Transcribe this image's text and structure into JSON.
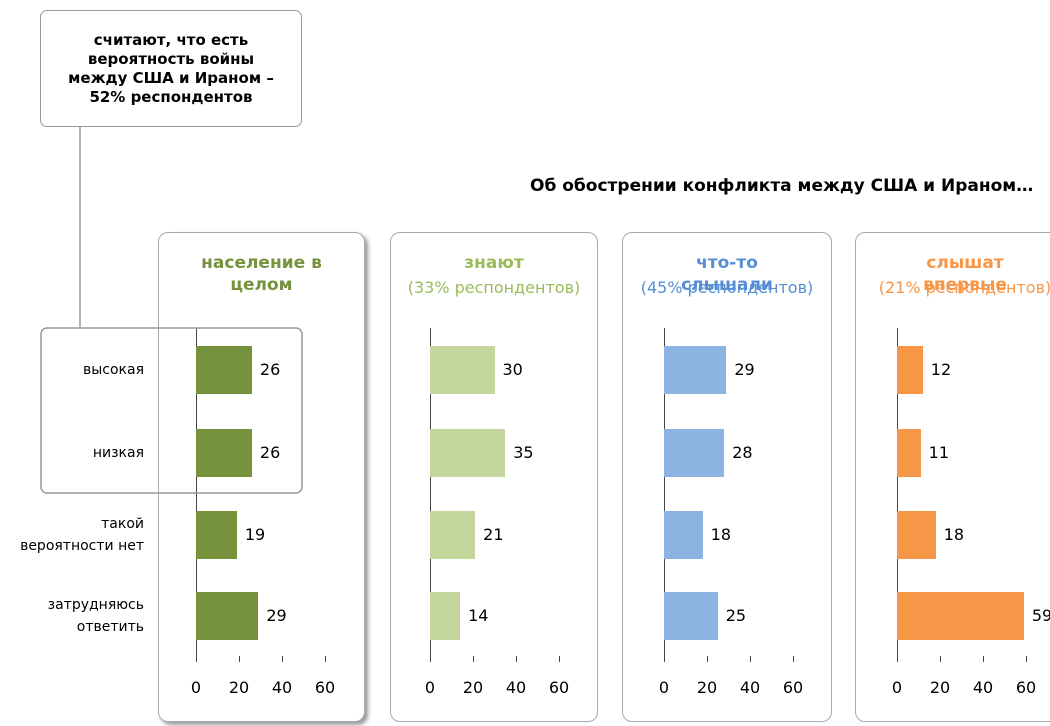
{
  "callout": "считают, что есть вероятность войны между США и Ираном – 52% респондентов",
  "title": "Об обострении конфликта между США и Ираном…",
  "chart_data": [
    {
      "type": "bar",
      "title": "население в целом",
      "categories": [
        "высокая",
        "низкая",
        "такой вероятности нет",
        "затрудняюсь ответить"
      ],
      "values": [
        26,
        26,
        19,
        29
      ],
      "color": "#76923c",
      "title_color": "#76923c",
      "xlim": [
        0,
        60
      ],
      "xticks": [
        0,
        20,
        40,
        60
      ]
    },
    {
      "type": "bar",
      "title": "знают",
      "subtitle": "(33% респондентов)",
      "values": [
        30,
        35,
        21,
        14
      ],
      "color": "#c3d69b",
      "title_color": "#9bbb59",
      "xlim": [
        0,
        60
      ],
      "xticks": [
        0,
        20,
        40,
        60
      ]
    },
    {
      "type": "bar",
      "title": "что-то слышали",
      "subtitle": "(45% респондентов)",
      "values": [
        29,
        28,
        18,
        25
      ],
      "color": "#8db3e2",
      "title_color": "#558ed5",
      "xlim": [
        0,
        60
      ],
      "xticks": [
        0,
        20,
        40,
        60
      ]
    },
    {
      "type": "bar",
      "title": "слышат впервые",
      "subtitle": "(21% респондентов)",
      "values": [
        12,
        11,
        18,
        59
      ],
      "color": "#f79646",
      "title_color": "#f79646",
      "xlim": [
        0,
        60
      ],
      "xticks": [
        0,
        20,
        40,
        60
      ]
    }
  ]
}
